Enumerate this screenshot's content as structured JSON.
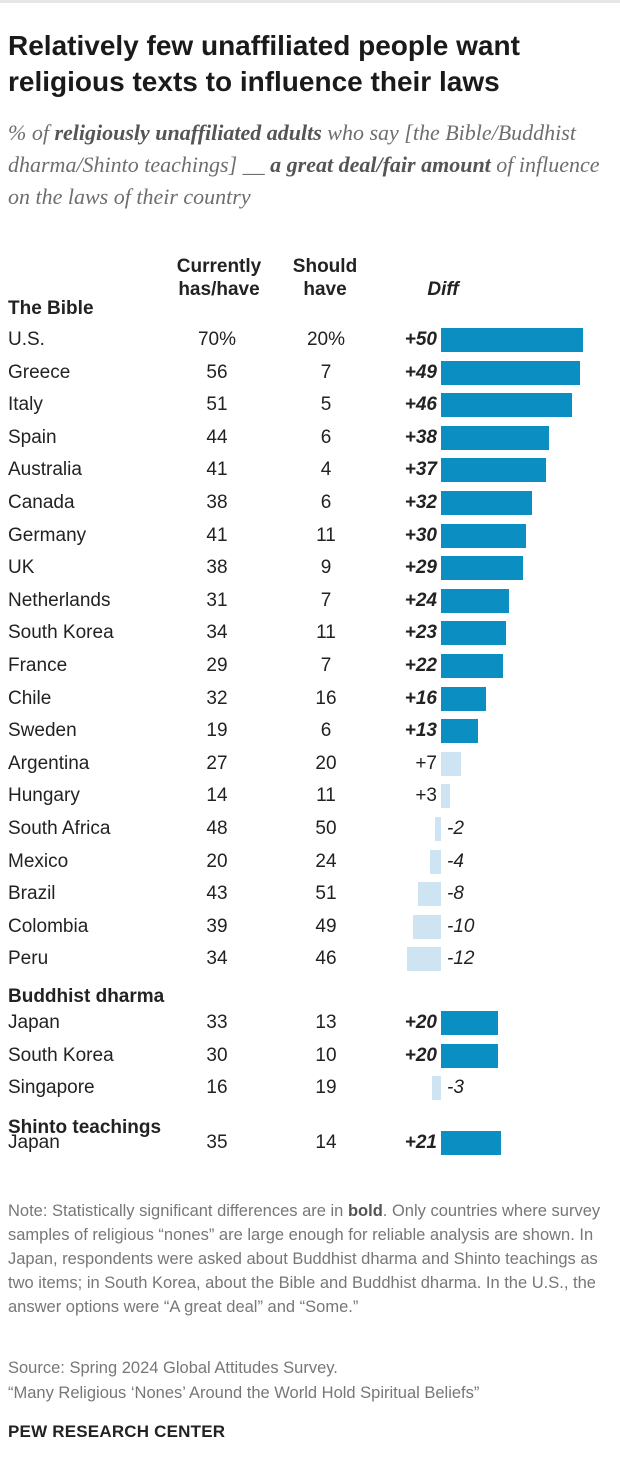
{
  "title": "Relatively few unaffiliated people want religious texts to influence their laws",
  "subtitle": {
    "prefix": "% of ",
    "bold1": "religiously unaffiliated adults",
    "middle": " who say [the Bible/Buddhist dharma/Shinto teachings] __ ",
    "bold2": "a great deal/fair amount",
    "suffix": " of influence on the laws of their country"
  },
  "headers": {
    "currently": "Currently has/have",
    "should": "Should have",
    "diff": "Diff"
  },
  "colors": {
    "significant": "#0b8ec2",
    "not_significant": "#cfe4f2"
  },
  "chart_data": {
    "type": "bar",
    "value_unit": "%",
    "sections": [
      {
        "name": "The Bible",
        "rows": [
          {
            "country": "U.S.",
            "current": "70%",
            "should": "20%",
            "diff": 50,
            "label": "+50",
            "significant": true
          },
          {
            "country": "Greece",
            "current": "56",
            "should": "7",
            "diff": 49,
            "label": "+49",
            "significant": true
          },
          {
            "country": "Italy",
            "current": "51",
            "should": "5",
            "diff": 46,
            "label": "+46",
            "significant": true
          },
          {
            "country": "Spain",
            "current": "44",
            "should": "6",
            "diff": 38,
            "label": "+38",
            "significant": true
          },
          {
            "country": "Australia",
            "current": "41",
            "should": "4",
            "diff": 37,
            "label": "+37",
            "significant": true
          },
          {
            "country": "Canada",
            "current": "38",
            "should": "6",
            "diff": 32,
            "label": "+32",
            "significant": true
          },
          {
            "country": "Germany",
            "current": "41",
            "should": "11",
            "diff": 30,
            "label": "+30",
            "significant": true
          },
          {
            "country": "UK",
            "current": "38",
            "should": "9",
            "diff": 29,
            "label": "+29",
            "significant": true
          },
          {
            "country": "Netherlands",
            "current": "31",
            "should": "7",
            "diff": 24,
            "label": "+24",
            "significant": true
          },
          {
            "country": "South Korea",
            "current": "34",
            "should": "11",
            "diff": 23,
            "label": "+23",
            "significant": true
          },
          {
            "country": "France",
            "current": "29",
            "should": "7",
            "diff": 22,
            "label": "+22",
            "significant": true
          },
          {
            "country": "Chile",
            "current": "32",
            "should": "16",
            "diff": 16,
            "label": "+16",
            "significant": true
          },
          {
            "country": "Sweden",
            "current": "19",
            "should": "6",
            "diff": 13,
            "label": "+13",
            "significant": true
          },
          {
            "country": "Argentina",
            "current": "27",
            "should": "20",
            "diff": 7,
            "label": "+7",
            "significant": false
          },
          {
            "country": "Hungary",
            "current": "14",
            "should": "11",
            "diff": 3,
            "label": "+3",
            "significant": false
          },
          {
            "country": "South Africa",
            "current": "48",
            "should": "50",
            "diff": -2,
            "label": "-2",
            "significant": false
          },
          {
            "country": "Mexico",
            "current": "20",
            "should": "24",
            "diff": -4,
            "label": "-4",
            "significant": false
          },
          {
            "country": "Brazil",
            "current": "43",
            "should": "51",
            "diff": -8,
            "label": "-8",
            "significant": false
          },
          {
            "country": "Colombia",
            "current": "39",
            "should": "49",
            "diff": -10,
            "label": "-10",
            "significant": false
          },
          {
            "country": "Peru",
            "current": "34",
            "should": "46",
            "diff": -12,
            "label": "-12",
            "significant": false
          }
        ]
      },
      {
        "name": "Buddhist dharma",
        "rows": [
          {
            "country": "Japan",
            "current": "33",
            "should": "13",
            "diff": 20,
            "label": "+20",
            "significant": true
          },
          {
            "country": "South Korea",
            "current": "30",
            "should": "10",
            "diff": 20,
            "label": "+20",
            "significant": true
          },
          {
            "country": "Singapore",
            "current": "16",
            "should": "19",
            "diff": -3,
            "label": "-3",
            "significant": false
          }
        ]
      },
      {
        "name": "Shinto teachings",
        "rows": [
          {
            "country": "Japan",
            "current": "35",
            "should": "14",
            "diff": 21,
            "label": "+21",
            "significant": true
          }
        ]
      }
    ]
  },
  "note": {
    "prefix": "Note: Statistically significant differences are in ",
    "bold": "bold",
    "suffix": ". Only countries where survey samples of religious “nones” are large enough for reliable analysis are shown. In Japan, respondents were asked about Buddhist dharma and Shinto teachings as two items; in South Korea, about the Bible and Buddhist dharma. In the U.S., the answer options were “A great deal” and “Some.”"
  },
  "source": "Source: Spring 2024 Global Attitudes Survey.",
  "report": "“Many Religious ‘Nones’ Around the World Hold Spiritual Beliefs”",
  "brand": "PEW RESEARCH CENTER"
}
